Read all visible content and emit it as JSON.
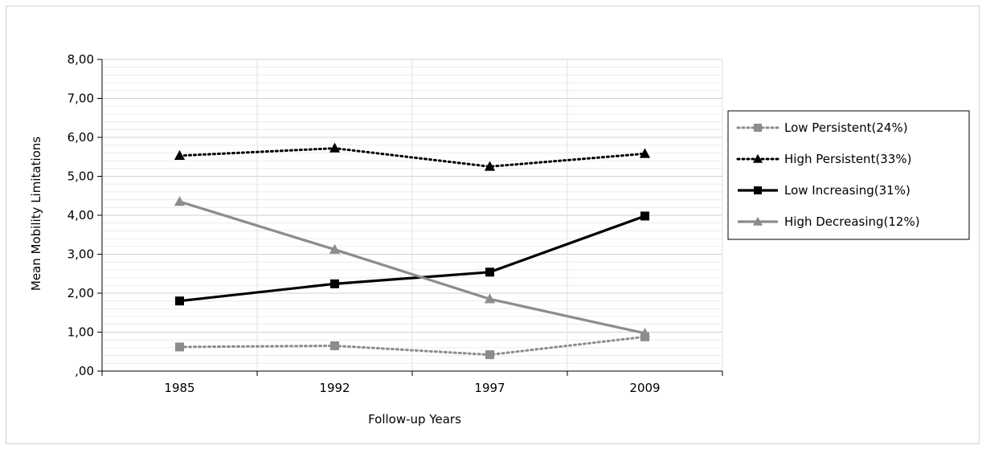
{
  "chart_data": {
    "type": "line",
    "title": "",
    "xlabel": "Follow-up Years",
    "ylabel": "Mean Mobility Limitations",
    "categories": [
      "1985",
      "1992",
      "1997",
      "2009"
    ],
    "ylim": [
      0,
      8
    ],
    "yticks": [
      0,
      1,
      2,
      3,
      4,
      5,
      6,
      7,
      8
    ],
    "ytick_labels": [
      ",00",
      "1,00",
      "2,00",
      "3,00",
      "4,00",
      "5,00",
      "6,00",
      "7,00",
      "8,00"
    ],
    "grid": true,
    "legend_position": "right",
    "series": [
      {
        "name": "Low Persistent(24%)",
        "values": [
          0.62,
          0.65,
          0.42,
          0.88
        ],
        "color": "#8c8c8c",
        "line": "dotted",
        "marker": "square"
      },
      {
        "name": "High Persistent(33%)",
        "values": [
          5.53,
          5.72,
          5.25,
          5.58
        ],
        "color": "#000000",
        "line": "dotted",
        "marker": "triangle"
      },
      {
        "name": "Low Increasing(31%)",
        "values": [
          1.8,
          2.24,
          2.54,
          3.98
        ],
        "color": "#000000",
        "line": "solid",
        "marker": "square"
      },
      {
        "name": "High Decreasing(12%)",
        "values": [
          4.35,
          3.12,
          1.85,
          0.97
        ],
        "color": "#8c8c8c",
        "line": "solid",
        "marker": "triangle"
      }
    ]
  }
}
